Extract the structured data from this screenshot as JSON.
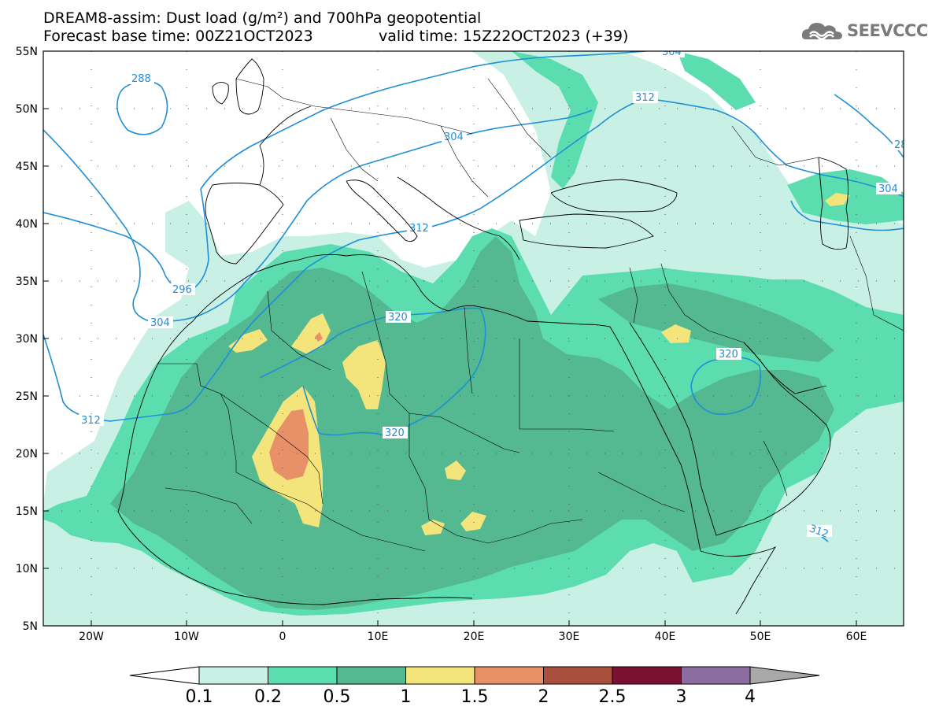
{
  "title": {
    "line1": "DREAM8-assim: Dust load (g/m²) and 700hPa geopotential",
    "base_time": "Forecast base time: 00Z21OCT2023",
    "valid_time": "valid time: 15Z22OCT2023 (+39)"
  },
  "logo": {
    "text": "SEEVCCC",
    "icon": "cloud-logo-icon"
  },
  "map": {
    "lon_range": [
      -25,
      65
    ],
    "lat_range": [
      5,
      55
    ],
    "lon_ticks": [
      "20W",
      "10W",
      "0",
      "10E",
      "20E",
      "30E",
      "40E",
      "50E",
      "60E"
    ],
    "lat_ticks": [
      "55N",
      "50N",
      "45N",
      "40N",
      "35N",
      "30N",
      "25N",
      "20N",
      "15N",
      "10N",
      "5N"
    ],
    "contour_color": "#1f8fd6",
    "contour_labels": [
      "288",
      "296",
      "304",
      "304",
      "304",
      "304",
      "312",
      "312",
      "312",
      "312",
      "320",
      "320",
      "320",
      "28"
    ]
  },
  "colorbar": {
    "levels": [
      "0.1",
      "0.2",
      "0.5",
      "1",
      "1.5",
      "2",
      "2.5",
      "3",
      "4"
    ],
    "colors": [
      "#c8f0e4",
      "#5cddb0",
      "#54b890",
      "#f4e47c",
      "#e89068",
      "#a8503c",
      "#7c1030",
      "#8c6ca0"
    ],
    "under_color": "#ffffff",
    "over_color": "#a8a8a8"
  }
}
